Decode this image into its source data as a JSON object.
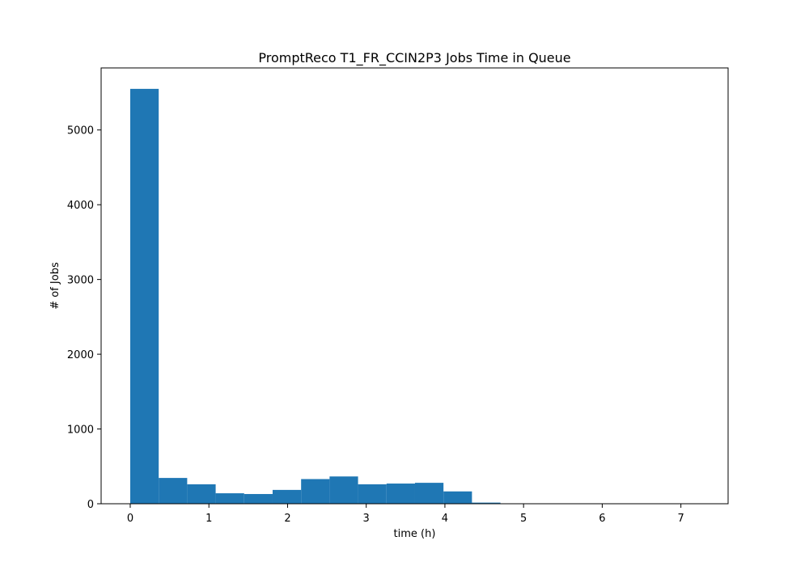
{
  "chart_data": {
    "type": "bar",
    "title": "PromptReco T1_FR_CCIN2P3 Jobs Time in Queue",
    "xlabel": "time (h)",
    "ylabel": "# of Jobs",
    "xlim": [
      -0.37,
      7.6
    ],
    "ylim": [
      0,
      5830
    ],
    "xticks": [
      0,
      1,
      2,
      3,
      4,
      5,
      6,
      7
    ],
    "yticks": [
      0,
      1000,
      2000,
      3000,
      4000,
      5000
    ],
    "bin_edges": [
      0,
      0.362,
      0.724,
      1.086,
      1.448,
      1.81,
      2.172,
      2.534,
      2.896,
      3.258,
      3.62,
      3.982,
      4.344,
      4.706,
      5.068,
      5.43,
      5.792,
      6.154,
      6.516,
      6.878,
      7.24
    ],
    "values": [
      5550,
      345,
      260,
      140,
      130,
      185,
      330,
      365,
      260,
      270,
      280,
      165,
      15,
      3,
      2,
      1,
      1,
      1,
      1,
      2
    ],
    "color": "#1f77b4",
    "grid": false,
    "legend": "none"
  }
}
